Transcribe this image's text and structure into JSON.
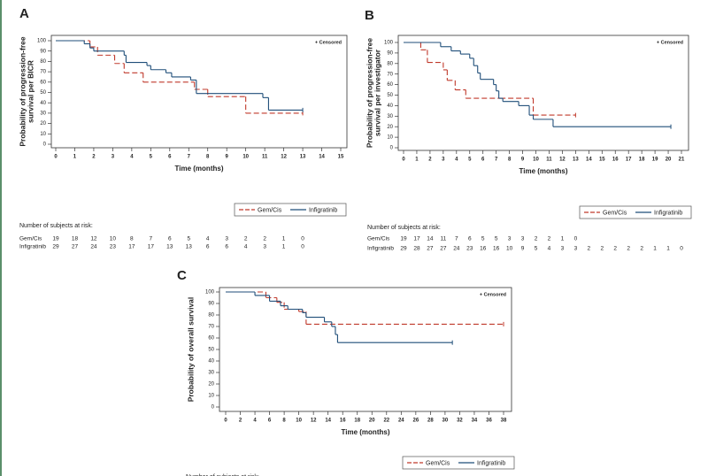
{
  "chart_data": [
    {
      "type": "line",
      "panel": "A",
      "ylabel": [
        "Probability of progression-free",
        "survival per BICR"
      ],
      "xlabel": "Time (months)",
      "annotation": "+ Censored",
      "xlim": [
        0,
        15
      ],
      "xticks": [
        0,
        1,
        2,
        3,
        4,
        5,
        6,
        7,
        8,
        9,
        10,
        11,
        12,
        13,
        14,
        15
      ],
      "ylim": [
        0,
        100
      ],
      "yticks": [
        0,
        10,
        20,
        30,
        40,
        50,
        60,
        70,
        80,
        90,
        100
      ],
      "series": [
        {
          "name": "Gem/Cis",
          "color": "#c0392b",
          "dashed": true,
          "x": [
            0,
            1.8,
            2.2,
            3.1,
            3.6,
            4.6,
            7.3,
            8.0,
            10.0,
            13.0
          ],
          "values": [
            100,
            94,
            86,
            78,
            69,
            60,
            53,
            46,
            30,
            30
          ]
        },
        {
          "name": "Infigratinib",
          "color": "#1f4e79",
          "dashed": false,
          "x": [
            0,
            1.5,
            1.8,
            2.0,
            3.6,
            3.7,
            4.8,
            5.0,
            5.8,
            6.1,
            7.1,
            7.4,
            10.9,
            11.2,
            13.0
          ],
          "values": [
            100,
            97,
            93,
            90,
            86,
            79,
            76,
            72,
            69,
            65,
            62,
            49,
            45,
            33,
            33
          ]
        }
      ],
      "risk_table": {
        "title": "Number of subjects at risk:",
        "rows": [
          {
            "name": "Gem/Cis",
            "values": [
              19,
              18,
              12,
              10,
              8,
              7,
              6,
              5,
              4,
              3,
              2,
              2,
              1,
              0
            ]
          },
          {
            "name": "Infigratinib",
            "values": [
              29,
              27,
              24,
              23,
              17,
              17,
              13,
              13,
              6,
              6,
              4,
              3,
              1,
              0
            ]
          }
        ]
      }
    },
    {
      "type": "line",
      "panel": "B",
      "ylabel": [
        "Probability of progression-free",
        "survival per investigator"
      ],
      "xlabel": "Time (months)",
      "annotation": "+ Censored",
      "xlim": [
        0,
        21
      ],
      "xticks": [
        0,
        1,
        2,
        3,
        4,
        5,
        6,
        7,
        8,
        9,
        10,
        11,
        12,
        13,
        14,
        15,
        16,
        17,
        18,
        19,
        20,
        21
      ],
      "ylim": [
        0,
        100
      ],
      "yticks": [
        0,
        10,
        20,
        30,
        40,
        50,
        60,
        70,
        80,
        90,
        100
      ],
      "series": [
        {
          "name": "Gem/Cis",
          "color": "#c0392b",
          "dashed": true,
          "x": [
            0,
            1.3,
            1.8,
            3.0,
            3.3,
            3.9,
            4.7,
            7.3,
            9.8,
            13.0
          ],
          "values": [
            100,
            93,
            81,
            74,
            64,
            55,
            47,
            47,
            31,
            31
          ]
        },
        {
          "name": "Infigratinib",
          "color": "#1f4e79",
          "dashed": false,
          "x": [
            0,
            2.8,
            3.6,
            4.3,
            5.0,
            5.3,
            5.6,
            5.8,
            6.8,
            7.0,
            7.2,
            7.5,
            8.7,
            9.5,
            9.8,
            11.3,
            20.2
          ],
          "values": [
            100,
            96,
            92,
            89,
            85,
            78,
            71,
            65,
            60,
            54,
            47,
            44,
            40,
            31,
            27,
            20,
            20
          ]
        }
      ],
      "risk_table": {
        "title": "Number of subjects at risk:",
        "rows": [
          {
            "name": "Gem/Cis",
            "values": [
              19,
              17,
              14,
              11,
              7,
              6,
              5,
              5,
              3,
              3,
              2,
              2,
              1,
              0
            ]
          },
          {
            "name": "Infigratinib",
            "values": [
              29,
              28,
              27,
              27,
              24,
              23,
              16,
              16,
              10,
              9,
              5,
              4,
              3,
              3,
              2,
              2,
              2,
              2,
              2,
              1,
              1,
              0
            ]
          }
        ]
      }
    },
    {
      "type": "line",
      "panel": "C",
      "ylabel": [
        "Probability of overall survival"
      ],
      "xlabel": "Time (months)",
      "annotation": "+ Censored",
      "xlim": [
        0,
        38
      ],
      "xticks": [
        0,
        2,
        4,
        6,
        8,
        10,
        12,
        14,
        16,
        18,
        20,
        22,
        24,
        26,
        28,
        30,
        32,
        34,
        36,
        38
      ],
      "ylim": [
        0,
        100
      ],
      "yticks": [
        0,
        10,
        20,
        30,
        40,
        50,
        60,
        70,
        80,
        90,
        100
      ],
      "series": [
        {
          "name": "Gem/Cis",
          "color": "#c0392b",
          "dashed": true,
          "x": [
            0,
            5.5,
            7.0,
            8.0,
            10.0,
            11.0,
            38.0
          ],
          "values": [
            100,
            95,
            91,
            85,
            83,
            72,
            72
          ]
        },
        {
          "name": "Infigratinib",
          "color": "#1f4e79",
          "dashed": false,
          "x": [
            0,
            4.0,
            6.0,
            7.5,
            8.5,
            10.5,
            11.0,
            13.5,
            14.5,
            15.0,
            15.3,
            31.0
          ],
          "values": [
            100,
            97,
            92,
            88,
            85,
            82,
            78,
            74,
            70,
            63,
            56,
            56
          ]
        }
      ],
      "risk_table": {
        "title": "Number of subjects at risk:",
        "rows": []
      }
    }
  ]
}
